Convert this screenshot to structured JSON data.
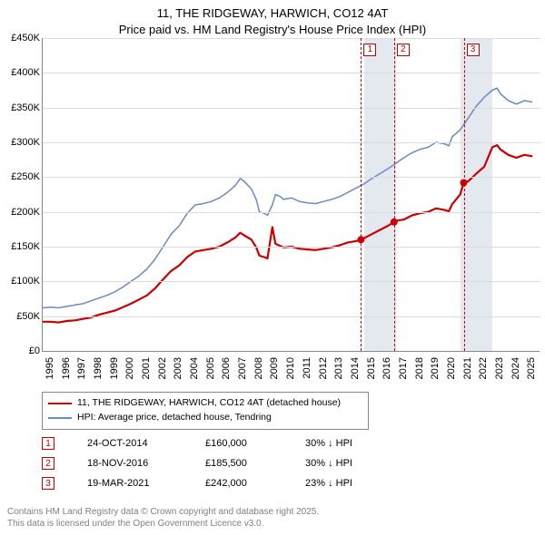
{
  "title": {
    "line1": "11, THE RIDGEWAY, HARWICH, CO12 4AT",
    "line2": "Price paid vs. HM Land Registry's House Price Index (HPI)"
  },
  "chart": {
    "type": "line",
    "background_color": "#ffffff",
    "grid_color": "#dcdcdc",
    "axis_color": "#888888",
    "shaded_band_color": "#e4e9f0",
    "x": {
      "min": 1995,
      "max": 2026,
      "ticks": [
        1995,
        1996,
        1997,
        1998,
        1999,
        2000,
        2001,
        2002,
        2003,
        2004,
        2005,
        2006,
        2007,
        2008,
        2009,
        2010,
        2011,
        2012,
        2013,
        2014,
        2015,
        2016,
        2017,
        2018,
        2019,
        2020,
        2021,
        2022,
        2023,
        2024,
        2025
      ],
      "label_fontsize": 11
    },
    "y": {
      "min": 0,
      "max": 450000,
      "ticks": [
        0,
        50000,
        100000,
        150000,
        200000,
        250000,
        300000,
        350000,
        400000,
        450000
      ],
      "tick_labels": [
        "£0",
        "£50K",
        "£100K",
        "£150K",
        "£200K",
        "£250K",
        "£300K",
        "£350K",
        "£400K",
        "£450K"
      ],
      "label_fontsize": 11
    },
    "shaded_bands": [
      [
        2015,
        2017
      ],
      [
        2021,
        2023
      ]
    ],
    "vlines": [
      2014.82,
      2016.88,
      2021.22
    ],
    "markers": [
      {
        "id": "1",
        "x": 2014.82
      },
      {
        "id": "2",
        "x": 2016.88
      },
      {
        "id": "3",
        "x": 2021.22
      }
    ],
    "series": {
      "hpi": {
        "color": "#6a8bc0",
        "line_width": 1.5,
        "label": "HPI: Average price, detached house, Tendring",
        "data": [
          [
            1995.0,
            62000
          ],
          [
            1995.5,
            63000
          ],
          [
            1996.0,
            62000
          ],
          [
            1996.5,
            64000
          ],
          [
            1997.0,
            66000
          ],
          [
            1997.5,
            68000
          ],
          [
            1998.0,
            72000
          ],
          [
            1998.5,
            76000
          ],
          [
            1999.0,
            80000
          ],
          [
            1999.5,
            85000
          ],
          [
            2000.0,
            92000
          ],
          [
            2000.5,
            100000
          ],
          [
            2001.0,
            108000
          ],
          [
            2001.5,
            118000
          ],
          [
            2002.0,
            132000
          ],
          [
            2002.5,
            150000
          ],
          [
            2003.0,
            168000
          ],
          [
            2003.5,
            180000
          ],
          [
            2004.0,
            198000
          ],
          [
            2004.5,
            210000
          ],
          [
            2005.0,
            212000
          ],
          [
            2005.5,
            215000
          ],
          [
            2006.0,
            220000
          ],
          [
            2006.5,
            228000
          ],
          [
            2007.0,
            238000
          ],
          [
            2007.3,
            248000
          ],
          [
            2007.5,
            245000
          ],
          [
            2008.0,
            233000
          ],
          [
            2008.3,
            218000
          ],
          [
            2008.5,
            200000
          ],
          [
            2008.8,
            198000
          ],
          [
            2009.0,
            195000
          ],
          [
            2009.3,
            210000
          ],
          [
            2009.5,
            225000
          ],
          [
            2009.8,
            222000
          ],
          [
            2010.0,
            218000
          ],
          [
            2010.5,
            220000
          ],
          [
            2011.0,
            215000
          ],
          [
            2011.5,
            213000
          ],
          [
            2012.0,
            212000
          ],
          [
            2012.5,
            215000
          ],
          [
            2013.0,
            218000
          ],
          [
            2013.5,
            222000
          ],
          [
            2014.0,
            228000
          ],
          [
            2014.5,
            234000
          ],
          [
            2015.0,
            240000
          ],
          [
            2015.5,
            248000
          ],
          [
            2016.0,
            255000
          ],
          [
            2016.5,
            262000
          ],
          [
            2017.0,
            270000
          ],
          [
            2017.5,
            278000
          ],
          [
            2018.0,
            285000
          ],
          [
            2018.5,
            290000
          ],
          [
            2019.0,
            293000
          ],
          [
            2019.5,
            300000
          ],
          [
            2020.0,
            298000
          ],
          [
            2020.3,
            295000
          ],
          [
            2020.5,
            308000
          ],
          [
            2021.0,
            318000
          ],
          [
            2021.5,
            335000
          ],
          [
            2022.0,
            352000
          ],
          [
            2022.5,
            365000
          ],
          [
            2023.0,
            375000
          ],
          [
            2023.3,
            378000
          ],
          [
            2023.5,
            370000
          ],
          [
            2024.0,
            360000
          ],
          [
            2024.5,
            355000
          ],
          [
            2025.0,
            360000
          ],
          [
            2025.5,
            358000
          ]
        ]
      },
      "property": {
        "color": "#cc0000",
        "line_width": 2.2,
        "label": "11, THE RIDGEWAY, HARWICH, CO12 4AT (detached house)",
        "data": [
          [
            1995.0,
            42000
          ],
          [
            1995.5,
            42000
          ],
          [
            1996.0,
            41000
          ],
          [
            1996.5,
            43000
          ],
          [
            1997.0,
            44000
          ],
          [
            1997.5,
            46000
          ],
          [
            1998.0,
            48000
          ],
          [
            1998.5,
            52000
          ],
          [
            1999.0,
            55000
          ],
          [
            1999.5,
            58000
          ],
          [
            2000.0,
            63000
          ],
          [
            2000.5,
            68000
          ],
          [
            2001.0,
            74000
          ],
          [
            2001.5,
            80000
          ],
          [
            2002.0,
            90000
          ],
          [
            2002.5,
            103000
          ],
          [
            2003.0,
            115000
          ],
          [
            2003.5,
            123000
          ],
          [
            2004.0,
            135000
          ],
          [
            2004.5,
            143000
          ],
          [
            2005.0,
            145000
          ],
          [
            2005.5,
            147000
          ],
          [
            2006.0,
            150000
          ],
          [
            2006.5,
            156000
          ],
          [
            2007.0,
            163000
          ],
          [
            2007.3,
            170000
          ],
          [
            2007.5,
            167000
          ],
          [
            2008.0,
            160000
          ],
          [
            2008.3,
            149000
          ],
          [
            2008.5,
            137000
          ],
          [
            2008.8,
            135000
          ],
          [
            2009.0,
            133000
          ],
          [
            2009.3,
            178000
          ],
          [
            2009.5,
            154000
          ],
          [
            2009.8,
            151000
          ],
          [
            2010.0,
            149000
          ],
          [
            2010.5,
            150000
          ],
          [
            2011.0,
            147000
          ],
          [
            2011.5,
            146000
          ],
          [
            2012.0,
            145000
          ],
          [
            2012.5,
            147000
          ],
          [
            2013.0,
            149000
          ],
          [
            2013.5,
            152000
          ],
          [
            2014.0,
            156000
          ],
          [
            2014.5,
            158000
          ],
          [
            2014.82,
            160000
          ],
          [
            2015.0,
            162000
          ],
          [
            2015.5,
            168000
          ],
          [
            2016.0,
            174000
          ],
          [
            2016.5,
            180000
          ],
          [
            2016.88,
            185500
          ],
          [
            2017.0,
            187000
          ],
          [
            2017.5,
            189000
          ],
          [
            2018.0,
            195000
          ],
          [
            2018.5,
            198000
          ],
          [
            2019.0,
            200000
          ],
          [
            2019.5,
            205000
          ],
          [
            2020.0,
            203000
          ],
          [
            2020.3,
            201000
          ],
          [
            2020.5,
            211000
          ],
          [
            2021.0,
            225000
          ],
          [
            2021.22,
            242000
          ],
          [
            2021.5,
            244000
          ],
          [
            2022.0,
            255000
          ],
          [
            2022.5,
            265000
          ],
          [
            2023.0,
            293000
          ],
          [
            2023.3,
            296000
          ],
          [
            2023.5,
            290000
          ],
          [
            2024.0,
            282000
          ],
          [
            2024.5,
            278000
          ],
          [
            2025.0,
            282000
          ],
          [
            2025.5,
            280000
          ]
        ],
        "sale_points": [
          [
            2014.82,
            160000
          ],
          [
            2016.88,
            185500
          ],
          [
            2021.22,
            242000
          ]
        ]
      }
    }
  },
  "legend": {
    "items": [
      {
        "color": "#cc0000",
        "width": 2.5,
        "label": "11, THE RIDGEWAY, HARWICH, CO12 4AT (detached house)"
      },
      {
        "color": "#6a8bc0",
        "width": 2,
        "label": "HPI: Average price, detached house, Tendring"
      }
    ]
  },
  "sales": [
    {
      "id": "1",
      "date": "24-OCT-2014",
      "price": "£160,000",
      "diff": "30% ↓ HPI"
    },
    {
      "id": "2",
      "date": "18-NOV-2016",
      "price": "£185,500",
      "diff": "30% ↓ HPI"
    },
    {
      "id": "3",
      "date": "19-MAR-2021",
      "price": "£242,000",
      "diff": "23% ↓ HPI"
    }
  ],
  "footer": {
    "line1": "Contains HM Land Registry data © Crown copyright and database right 2025.",
    "line2": "This data is licensed under the Open Government Licence v3.0."
  }
}
